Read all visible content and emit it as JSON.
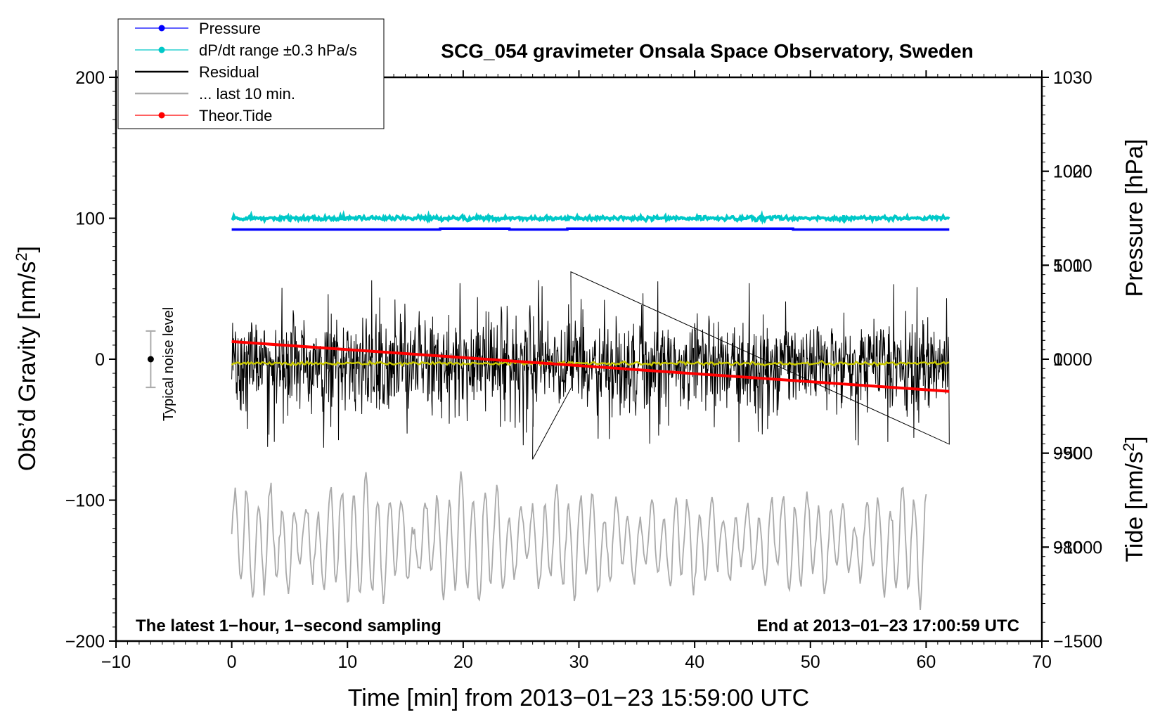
{
  "chart_data": {
    "type": "line",
    "title": "SCG_054 gravimeter Onsala Space Observatory, Sweden",
    "xlabel": "Time [min] from 2013−01−23 15:59:00 UTC",
    "ylabel": "Obs’d Gravity [nm/s",
    "ylabel_exp": "2",
    "ylabel_tail": "]",
    "y2label": "Pressure [hPa]",
    "y3label": "Tide [nm/s",
    "y3label_exp": "2",
    "y3label_tail": "]",
    "xlim": [
      -10,
      70
    ],
    "ylim": [
      -200,
      200
    ],
    "y2lim": [
      970,
      1030
    ],
    "y3lim": [
      -1500,
      1500
    ],
    "x_ticks": [
      -10,
      0,
      10,
      20,
      30,
      40,
      50,
      60,
      70
    ],
    "x_tick_labels": [
      "−10",
      "0",
      "10",
      "20",
      "30",
      "40",
      "50",
      "60",
      "70"
    ],
    "y_ticks": [
      -200,
      -100,
      0,
      100,
      200
    ],
    "y_tick_labels": [
      "−200",
      "−100",
      "0",
      "100",
      "200"
    ],
    "y2_ticks": [
      980,
      990,
      1000,
      1010,
      1020,
      1030
    ],
    "y2_tick_labels": [
      "980",
      "990",
      "1000",
      "1010",
      "1020",
      "1030"
    ],
    "y3_ticks": [
      -1500,
      -1000,
      -500,
      0,
      500,
      1000
    ],
    "y3_tick_labels": [
      "−1500",
      "−1000",
      "−500",
      "0",
      "500",
      "1000"
    ],
    "legend": [
      {
        "label": "Pressure",
        "color": "#0000ff",
        "marker": true
      },
      {
        "label": "dP/dt range ±0.3 hPa/s",
        "color": "#00c8c8",
        "marker": true
      },
      {
        "label": "Residual",
        "color": "#000000",
        "marker": false
      },
      {
        "label": "... last 10 min.",
        "color": "#aaaaaa",
        "marker": false
      },
      {
        "label": "Theor.Tide",
        "color": "#ff0000",
        "marker": true
      }
    ],
    "legend_position": "top-left",
    "bottom_left_text": "The latest 1−hour, 1−second sampling",
    "bottom_right_text": "End at 2013−01−23 17:00:59 UTC",
    "noise_label": "Typical noise level",
    "noise_bar": {
      "x": -7,
      "center": 0,
      "half_range": 20
    },
    "series": [
      {
        "name": "Pressure",
        "axis": "y2",
        "color": "#0000ff",
        "x": [
          0,
          18,
          24,
          29,
          36,
          48.5,
          62
        ],
        "values": [
          1013.8,
          1013.9,
          1013.8,
          1013.9,
          1013.9,
          1013.8,
          1013.8
        ]
      },
      {
        "name": "dP/dt range ±0.3 hPa/s",
        "axis": "y",
        "color": "#00c8c8",
        "x_range": [
          0,
          62
        ],
        "center": 100,
        "spread": 1.5
      },
      {
        "name": "Residual",
        "axis": "y",
        "color": "#000000",
        "x_range": [
          0,
          62
        ],
        "center": -3,
        "spread": 35,
        "max": 62,
        "min": -71
      },
      {
        "name": "Residual smoothed",
        "axis": "y",
        "color": "#c8c800",
        "x_range": [
          0,
          62
        ],
        "center": -3,
        "spread": 1
      },
      {
        "name": "... last 10 min.",
        "axis": "y",
        "color": "#aaaaaa",
        "x_range": [
          0,
          60
        ],
        "center": -130,
        "max": -68,
        "min": -181
      },
      {
        "name": "Theor.Tide",
        "axis": "y3",
        "color": "#ff0000",
        "x": [
          0,
          62
        ],
        "values": [
          94,
          -171
        ]
      }
    ]
  }
}
